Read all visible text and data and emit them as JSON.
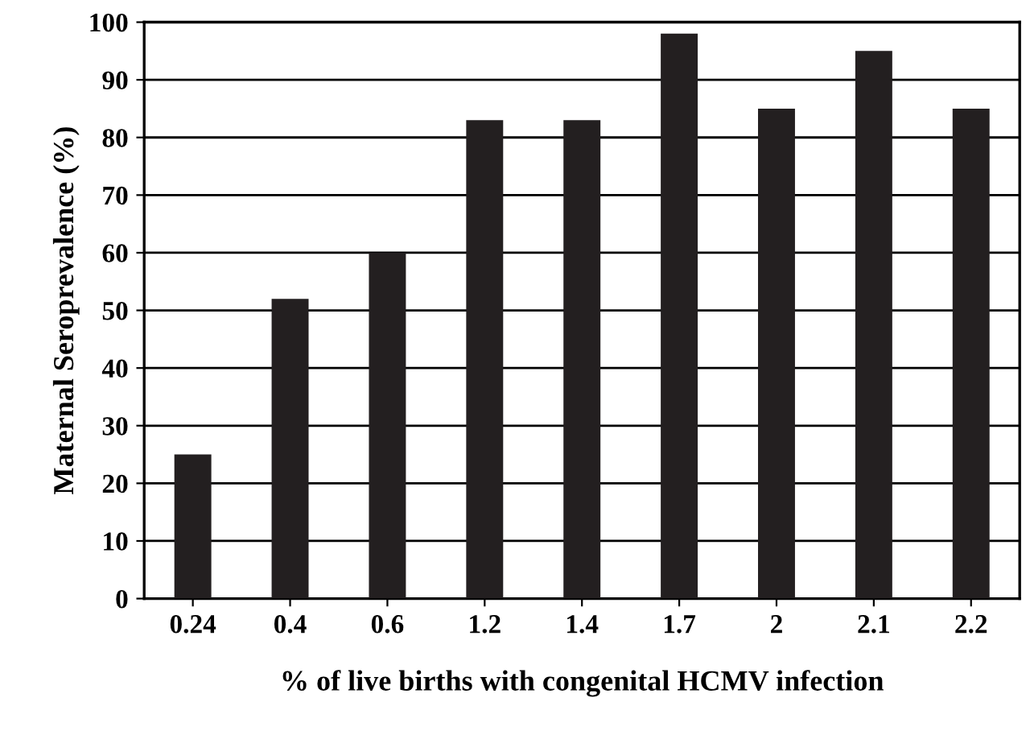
{
  "chart_data": {
    "type": "bar",
    "xlabel": "% of live births with congenital HCMV infection",
    "ylabel": "Maternal Seroprevalence (%)",
    "categories": [
      "0.24",
      "0.4",
      "0.6",
      "1.2",
      "1.4",
      "1.7",
      "2",
      "2.1",
      "2.2"
    ],
    "values": [
      25,
      52,
      60,
      83,
      83,
      98,
      85,
      95,
      85
    ],
    "color": "#231f20",
    "ylim": [
      0,
      100
    ],
    "yticks": [
      0,
      10,
      20,
      30,
      40,
      50,
      60,
      70,
      80,
      90,
      100
    ],
    "grid": "y"
  }
}
